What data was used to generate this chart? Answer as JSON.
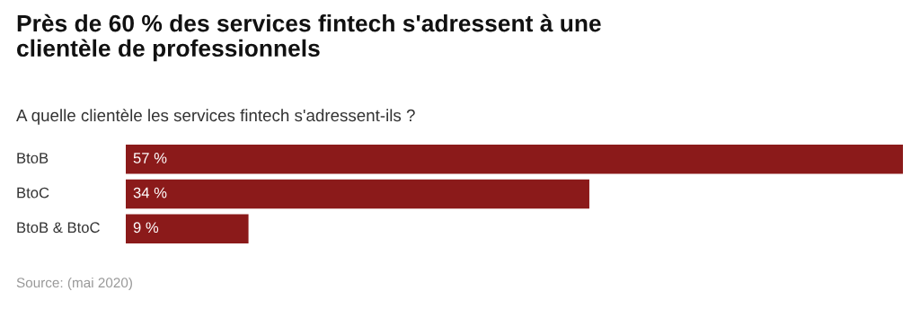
{
  "chart_data": {
    "type": "bar",
    "orientation": "horizontal",
    "title": "Près de 60 % des services fintech s'adressent à une\nclientèle de professionnels",
    "subtitle": "A quelle clientèle les services fintech s'adressent-ils ?",
    "categories": [
      "BtoB",
      "BtoC",
      "BtoB & BtoC"
    ],
    "values": [
      57,
      34,
      9
    ],
    "value_labels": [
      "57 %",
      "34 %",
      "9 %"
    ],
    "color": "#8b1a1a",
    "annotations": [
      "Source: (mai 2020)"
    ]
  }
}
